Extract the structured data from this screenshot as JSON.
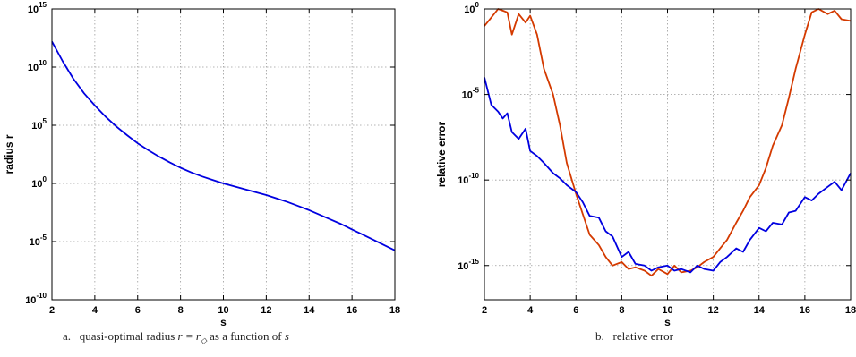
{
  "chart_data": [
    {
      "type": "line",
      "panel_label": "a.",
      "caption": {
        "prefix": "quasi-optimal radius ",
        "formula": "r = r",
        "subscript": "◇",
        "middle": " as a function of ",
        "variable": "s"
      },
      "xlabel": "s",
      "ylabel": "radius r",
      "xlim": [
        2,
        18
      ],
      "ylim_exponent": [
        -10,
        15
      ],
      "y_scale": "log",
      "grid": true,
      "x_ticks": [
        2,
        4,
        6,
        8,
        10,
        12,
        14,
        16,
        18
      ],
      "y_tick_exponents": [
        -10,
        -5,
        0,
        5,
        10,
        15
      ],
      "y_tick_base": "10",
      "series": [
        {
          "color": "#0000e0",
          "x": [
            2,
            2.5,
            3,
            3.5,
            4,
            4.5,
            5,
            5.5,
            6,
            6.5,
            7,
            7.5,
            8,
            8.5,
            9,
            9.5,
            10,
            10.5,
            11,
            11.5,
            12,
            12.5,
            13,
            13.5,
            14,
            14.5,
            15,
            15.5,
            16,
            16.5,
            17,
            17.5,
            18
          ],
          "log10y": [
            12.2,
            10.5,
            9.0,
            7.75,
            6.7,
            5.75,
            4.9,
            4.15,
            3.45,
            2.85,
            2.3,
            1.8,
            1.35,
            0.95,
            0.6,
            0.3,
            0,
            -0.25,
            -0.5,
            -0.75,
            -1.0,
            -1.3,
            -1.6,
            -1.95,
            -2.3,
            -2.7,
            -3.1,
            -3.5,
            -3.95,
            -4.4,
            -4.85,
            -5.3,
            -5.75
          ]
        }
      ]
    },
    {
      "type": "line",
      "panel_label": "b.",
      "caption": {
        "text": "relative error"
      },
      "xlabel": "s",
      "ylabel": "relative error",
      "xlim": [
        2,
        18
      ],
      "ylim_exponent": [
        -17,
        0
      ],
      "y_scale": "log",
      "grid": true,
      "x_ticks": [
        2,
        4,
        6,
        8,
        10,
        12,
        14,
        16,
        18
      ],
      "y_tick_exponents": [
        -15,
        -10,
        -5,
        0
      ],
      "y_tick_base": "10",
      "series": [
        {
          "color": "#d43a00",
          "x": [
            2,
            2.3,
            2.6,
            2.8,
            3.0,
            3.2,
            3.5,
            3.8,
            4.0,
            4.3,
            4.6,
            5.0,
            5.3,
            5.6,
            6.0,
            6.3,
            6.6,
            7.0,
            7.3,
            7.6,
            8.0,
            8.3,
            8.6,
            9.0,
            9.3,
            9.6,
            10.0,
            10.3,
            10.6,
            11.0,
            11.3,
            11.6,
            12.0,
            12.3,
            12.6,
            13.0,
            13.3,
            13.6,
            14.0,
            14.3,
            14.6,
            15.0,
            15.3,
            15.6,
            16.0,
            16.3,
            16.6,
            17.0,
            17.3,
            17.6,
            18.0
          ],
          "log10y": [
            -1.0,
            -0.5,
            0,
            -0.1,
            -0.2,
            -1.5,
            -0.3,
            -0.8,
            -0.4,
            -1.5,
            -3.5,
            -5.0,
            -6.8,
            -9.0,
            -10.8,
            -12.0,
            -13.2,
            -13.8,
            -14.5,
            -15.0,
            -14.8,
            -15.2,
            -15.1,
            -15.3,
            -15.6,
            -15.2,
            -15.5,
            -15.0,
            -15.4,
            -15.3,
            -15.1,
            -14.8,
            -14.5,
            -14.0,
            -13.5,
            -12.5,
            -11.8,
            -11.0,
            -10.3,
            -9.3,
            -8.0,
            -6.8,
            -5.2,
            -3.5,
            -1.5,
            -0.2,
            0,
            -0.3,
            -0.1,
            -0.6,
            -0.7
          ]
        },
        {
          "color": "#0000e0",
          "x": [
            2,
            2.3,
            2.6,
            2.8,
            3.0,
            3.2,
            3.5,
            3.8,
            4.0,
            4.3,
            4.6,
            5.0,
            5.3,
            5.6,
            6.0,
            6.3,
            6.6,
            7.0,
            7.3,
            7.6,
            8.0,
            8.3,
            8.6,
            9.0,
            9.3,
            9.6,
            10.0,
            10.3,
            10.6,
            11.0,
            11.3,
            11.6,
            12.0,
            12.3,
            12.6,
            13.0,
            13.3,
            13.6,
            14.0,
            14.3,
            14.6,
            15.0,
            15.3,
            15.6,
            16.0,
            16.3,
            16.6,
            17.0,
            17.3,
            17.6,
            18.0
          ],
          "log10y": [
            -4.0,
            -5.6,
            -6.0,
            -6.4,
            -6.1,
            -7.2,
            -7.6,
            -7.0,
            -8.3,
            -8.6,
            -9.0,
            -9.6,
            -9.9,
            -10.3,
            -10.7,
            -11.3,
            -12.1,
            -12.2,
            -13.0,
            -13.3,
            -14.5,
            -14.2,
            -14.9,
            -15.0,
            -15.3,
            -15.1,
            -15.0,
            -15.3,
            -15.2,
            -15.4,
            -15.0,
            -15.2,
            -15.3,
            -14.8,
            -14.5,
            -14.0,
            -14.2,
            -13.5,
            -12.8,
            -13.0,
            -12.5,
            -12.6,
            -11.9,
            -11.8,
            -11.0,
            -11.2,
            -10.8,
            -10.4,
            -10.1,
            -10.6,
            -9.6
          ]
        }
      ]
    }
  ]
}
